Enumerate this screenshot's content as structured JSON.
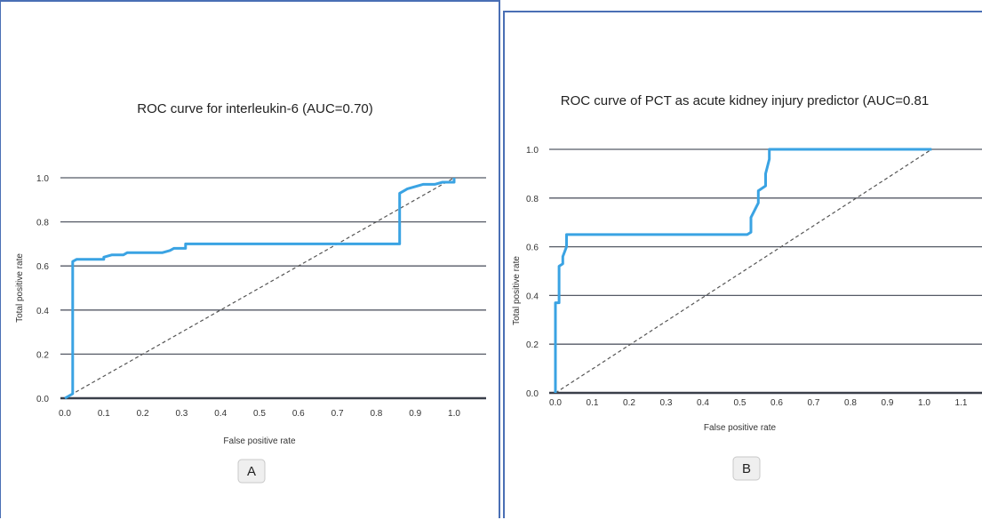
{
  "chart_data": [
    {
      "type": "line",
      "title": "ROC curve for interleukin-6 (AUC=0.70)",
      "xlabel": "False positive rate",
      "ylabel": "Total positive rate",
      "xlim": [
        0.0,
        1.0
      ],
      "ylim": [
        0.0,
        1.0
      ],
      "x_ticks": [
        "0.0",
        "0.1",
        "0.2",
        "0.3",
        "0.4",
        "0.5",
        "0.6",
        "0.7",
        "0.8",
        "0.9",
        "1.0"
      ],
      "y_ticks": [
        "0.0",
        "0.2",
        "0.4",
        "0.6",
        "0.8",
        "1.0"
      ],
      "grid": "horizontal",
      "panel_label": "A",
      "series": [
        {
          "x": [
            0.0,
            0.02,
            0.02,
            0.03,
            0.1,
            0.1,
            0.12,
            0.15,
            0.16,
            0.2,
            0.25,
            0.27,
            0.28,
            0.31,
            0.31,
            0.5,
            0.7,
            0.86,
            0.86,
            0.87,
            0.88,
            0.9,
            0.92,
            0.95,
            0.97,
            1.0,
            1.0
          ],
          "y": [
            0.0,
            0.02,
            0.62,
            0.63,
            0.63,
            0.64,
            0.65,
            0.65,
            0.66,
            0.66,
            0.66,
            0.67,
            0.68,
            0.68,
            0.7,
            0.7,
            0.7,
            0.7,
            0.93,
            0.94,
            0.95,
            0.96,
            0.97,
            0.97,
            0.98,
            0.98,
            1.0
          ]
        }
      ],
      "reference_line": {
        "x": [
          0.0,
          1.0
        ],
        "y": [
          0.0,
          1.0
        ]
      },
      "colors": {
        "curve": "#3aa3e3",
        "reference": "#555555",
        "grid": "#555a66"
      }
    },
    {
      "type": "line",
      "title": "ROC curve of PCT as acute kidney injury predictor (AUC=0.81",
      "xlabel": "False positive rate",
      "ylabel": "Total positive rate",
      "xlim": [
        0.0,
        1.1
      ],
      "ylim": [
        0.0,
        1.0
      ],
      "x_ticks": [
        "0.0",
        "0.1",
        "0.2",
        "0.3",
        "0.4",
        "0.5",
        "0.6",
        "0.7",
        "0.8",
        "0.9",
        "1.0",
        "1.1"
      ],
      "y_ticks": [
        "0.0",
        "0.2",
        "0.4",
        "0.6",
        "0.8",
        "1.0"
      ],
      "grid": "horizontal",
      "panel_label": "B",
      "series": [
        {
          "x": [
            0.0,
            0.0,
            0.01,
            0.01,
            0.02,
            0.02,
            0.03,
            0.03,
            0.52,
            0.53,
            0.53,
            0.55,
            0.55,
            0.57,
            0.57,
            0.58,
            0.58,
            1.02
          ],
          "y": [
            0.0,
            0.37,
            0.37,
            0.52,
            0.53,
            0.56,
            0.6,
            0.65,
            0.65,
            0.66,
            0.72,
            0.78,
            0.83,
            0.85,
            0.9,
            0.96,
            1.0,
            1.0
          ]
        }
      ],
      "reference_line": {
        "x": [
          0.0,
          1.02
        ],
        "y": [
          0.0,
          1.0
        ]
      },
      "colors": {
        "curve": "#3aa3e3",
        "reference": "#888888",
        "grid": "#555a66"
      }
    }
  ]
}
